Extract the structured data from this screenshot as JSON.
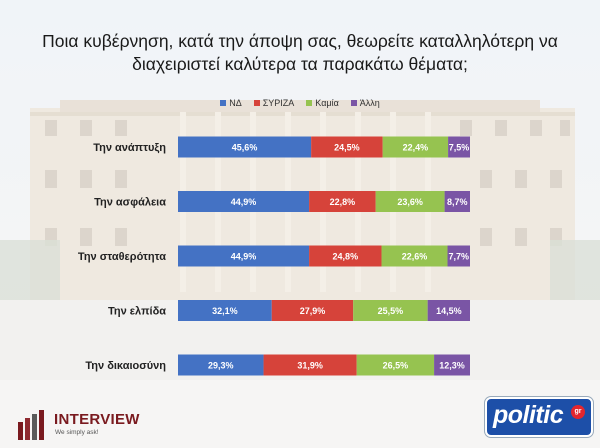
{
  "title": {
    "line1": "Ποια κυβέρνηση, κατά την άποψη σας, θεωρείτε καταλληλότερη να",
    "line2": "διαχειριστεί καλύτερα τα παρακάτω θέματα;"
  },
  "chart_data": {
    "type": "bar",
    "orientation": "horizontal",
    "stacked": "100%",
    "categories": [
      "Την ανάπτυξη",
      "Την ασφάλεια",
      "Την σταθερότητα",
      "Την ελπίδα",
      "Την δικαιοσύνη"
    ],
    "series": [
      {
        "name": "ΝΔ",
        "color": "#4472c4",
        "values": [
          45.6,
          44.9,
          44.9,
          32.1,
          29.3
        ],
        "labels": [
          "45,6%",
          "44,9%",
          "44,9%",
          "32,1%",
          "29,3%"
        ]
      },
      {
        "name": "ΣΥΡΙΖΑ",
        "color": "#d6433a",
        "values": [
          24.5,
          22.8,
          24.8,
          27.9,
          31.9
        ],
        "labels": [
          "24,5%",
          "22,8%",
          "24,8%",
          "27,9%",
          "31,9%"
        ]
      },
      {
        "name": "Καμία",
        "color": "#96c350",
        "values": [
          22.4,
          23.6,
          22.6,
          25.5,
          26.5
        ],
        "labels": [
          "22,4%",
          "23,6%",
          "22,6%",
          "25,5%",
          "26,5%"
        ]
      },
      {
        "name": "Άλλη",
        "color": "#7a55a5",
        "values": [
          7.5,
          8.7,
          7.7,
          14.5,
          12.3
        ],
        "labels": [
          "7,5%",
          "8,7%",
          "7,7%",
          "14,5%",
          "12,3%"
        ]
      }
    ],
    "legend_position": "top",
    "grid": false
  },
  "logos": {
    "interview_name": "INTERVIEW",
    "interview_tagline": "We simply ask!",
    "politic_word": "politic",
    "politic_suffix": "gr"
  }
}
